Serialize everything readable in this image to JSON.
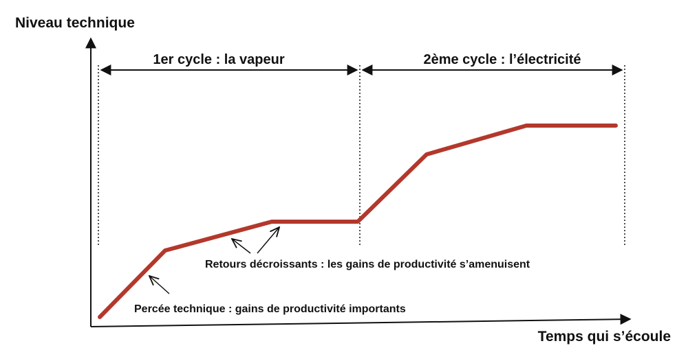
{
  "axes": {
    "y_label": "Niveau technique",
    "x_label": "Temps qui s’écoule"
  },
  "cycles": [
    "1er cycle : la vapeur",
    "2ème cycle : l’électricité"
  ],
  "annotations": [
    "Retours décroissants : les gains de productivité s’amenuisent",
    "Percée technique : gains de productivité importants"
  ]
}
